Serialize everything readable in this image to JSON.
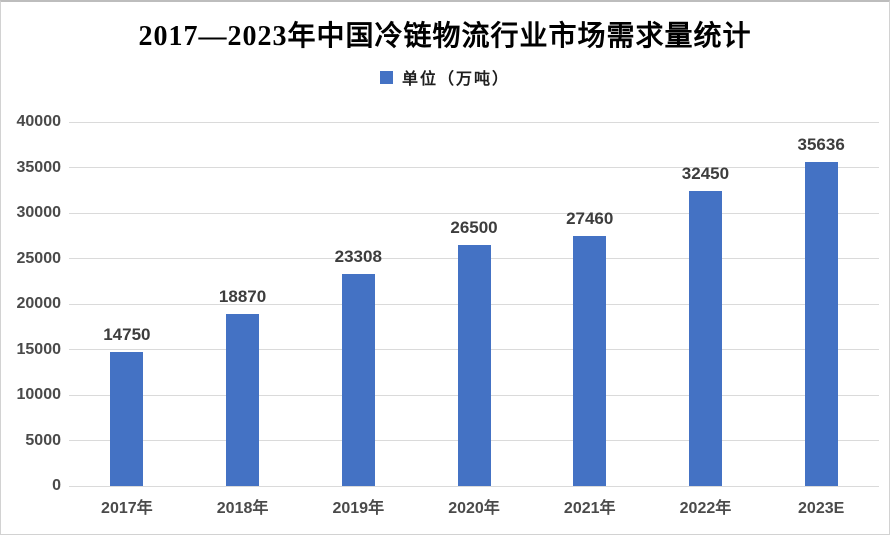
{
  "chart_data": {
    "type": "bar",
    "title": "2017—2023年中国冷链物流行业市场需求量统计",
    "legend": {
      "label": "单位（万吨）",
      "position": "top-center",
      "swatch_color": "#4472c4"
    },
    "categories": [
      "2017年",
      "2018年",
      "2019年",
      "2020年",
      "2021年",
      "2022年",
      "2023E"
    ],
    "series": [
      {
        "name": "单位（万吨）",
        "values": [
          14750,
          18870,
          23308,
          26500,
          27460,
          32450,
          35636
        ]
      }
    ],
    "data_labels": [
      14750,
      18870,
      23308,
      26500,
      27460,
      32450,
      35636
    ],
    "xlabel": "",
    "ylabel": "",
    "ylim": [
      0,
      40000
    ],
    "ytick_step": 5000,
    "yticks": [
      0,
      5000,
      10000,
      15000,
      20000,
      25000,
      30000,
      35000,
      40000
    ],
    "grid": true,
    "colors": {
      "bar": "#4472c4",
      "gridline": "#dadada",
      "tick_text": "#4a4a4a",
      "data_label_text": "#3d3d3d",
      "title_text": "#000000",
      "background": "#ffffff"
    }
  }
}
